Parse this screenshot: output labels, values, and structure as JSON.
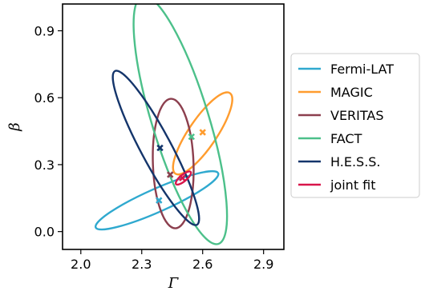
{
  "chart_data": {
    "type": "scatter",
    "title": "",
    "xlabel": "Γ",
    "ylabel": "β",
    "xlim": [
      1.91,
      3.0
    ],
    "ylim": [
      -0.08,
      1.02
    ],
    "xticks": [
      2.0,
      2.3,
      2.6,
      2.9
    ],
    "xtick_labels": [
      "2.0",
      "2.3",
      "2.6",
      "2.9"
    ],
    "yticks": [
      0.0,
      0.3,
      0.6,
      0.9
    ],
    "ytick_labels": [
      "0.0",
      "0.3",
      "0.6",
      "0.9"
    ],
    "grid": false,
    "legend_position": "right, outside",
    "series": [
      {
        "name": "Fermi-LAT",
        "color": "#2fa9cf",
        "best_fit": {
          "x": 2.385,
          "y": 0.14
        },
        "ellipse": {
          "cx": 2.375,
          "cy": 0.14,
          "r_major": 0.33,
          "r_minor": 0.057,
          "angle_deg": 24
        }
      },
      {
        "name": "MAGIC",
        "color": "#ff9c2e",
        "best_fit": {
          "x": 2.6,
          "y": 0.445
        },
        "ellipse": {
          "cx": 2.6,
          "cy": 0.44,
          "r_major": 0.24,
          "r_minor": 0.069,
          "angle_deg": 56
        }
      },
      {
        "name": "VERITAS",
        "color": "#8c3f4e",
        "best_fit": {
          "x": 2.44,
          "y": 0.255
        },
        "ellipse": {
          "cx": 2.455,
          "cy": 0.305,
          "r_major": 0.32,
          "r_minor": 0.1,
          "angle_deg": 92
        }
      },
      {
        "name": "FACT",
        "color": "#4cc08a",
        "best_fit": {
          "x": 2.545,
          "y": 0.425
        },
        "ellipse": {
          "cx": 2.49,
          "cy": 0.5,
          "r_major": 0.64,
          "r_minor": 0.14,
          "angle_deg": 107
        }
      },
      {
        "name": "H.E.S.S.",
        "color": "#14356b",
        "best_fit": {
          "x": 2.39,
          "y": 0.375
        },
        "ellipse": {
          "cx": 2.37,
          "cy": 0.375,
          "r_major": 0.43,
          "r_minor": 0.075,
          "angle_deg": 118
        }
      },
      {
        "name": "joint fit",
        "color": "#d8154a",
        "best_fit": {
          "x": 2.5,
          "y": 0.24
        },
        "ellipse": {
          "cx": 2.505,
          "cy": 0.24,
          "r_major": 0.047,
          "r_minor": 0.016,
          "angle_deg": 40
        }
      }
    ]
  }
}
